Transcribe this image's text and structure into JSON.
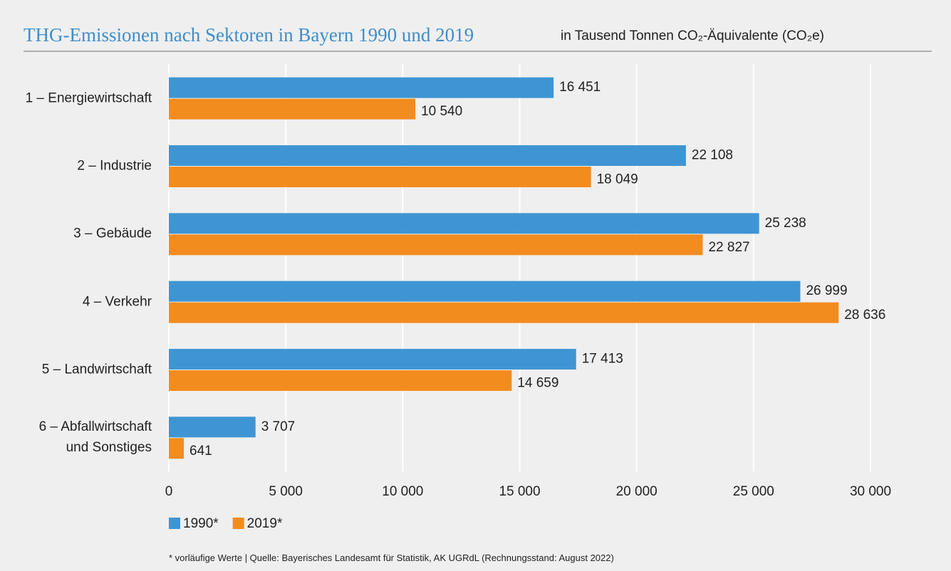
{
  "chart_data": {
    "type": "barh",
    "title": "THG-Emissionen nach Sektoren in Bayern 1990 und 2019",
    "subtitle": "in Tausend Tonnen CO₂-Äquivalente (CO₂e)",
    "categories": [
      "1 – Energiewirtschaft",
      "2 – Industrie",
      "3 – Gebäude",
      "4 – Verkehr",
      "5 – Landwirtschaft",
      "6 – Abfallwirtschaft\nund Sonstiges"
    ],
    "series": [
      {
        "name": "1990*",
        "color": "#3f95d3",
        "values": [
          16451,
          22108,
          25238,
          26999,
          17413,
          3707
        ],
        "value_labels": [
          "16 451",
          "22 108",
          "25 238",
          "26 999",
          "17 413",
          "3 707"
        ]
      },
      {
        "name": "2019*",
        "color": "#f28c1f",
        "values": [
          10540,
          18049,
          22827,
          28636,
          14659,
          641
        ],
        "value_labels": [
          "10 540",
          "18 049",
          "22 827",
          "28 636",
          "14 659",
          "641"
        ]
      }
    ],
    "xlim": [
      0,
      30000
    ],
    "xticks": [
      0,
      {
        "value": 5000,
        "label": "5 000"
      },
      {
        "value": 10000,
        "label": "10 000"
      },
      {
        "value": 15000,
        "label": "15 000"
      },
      {
        "value": 20000,
        "label": "20 000"
      },
      {
        "value": 25000,
        "label": "25 000"
      },
      {
        "value": 30000,
        "label": "30 000"
      }
    ],
    "grid": true,
    "legend": "bottom-left",
    "note": "* vorläufige Werte | Quelle: Bayerisches Landesamt für Statistik, AK UGRdL (Rechnungsstand: August 2022)"
  }
}
